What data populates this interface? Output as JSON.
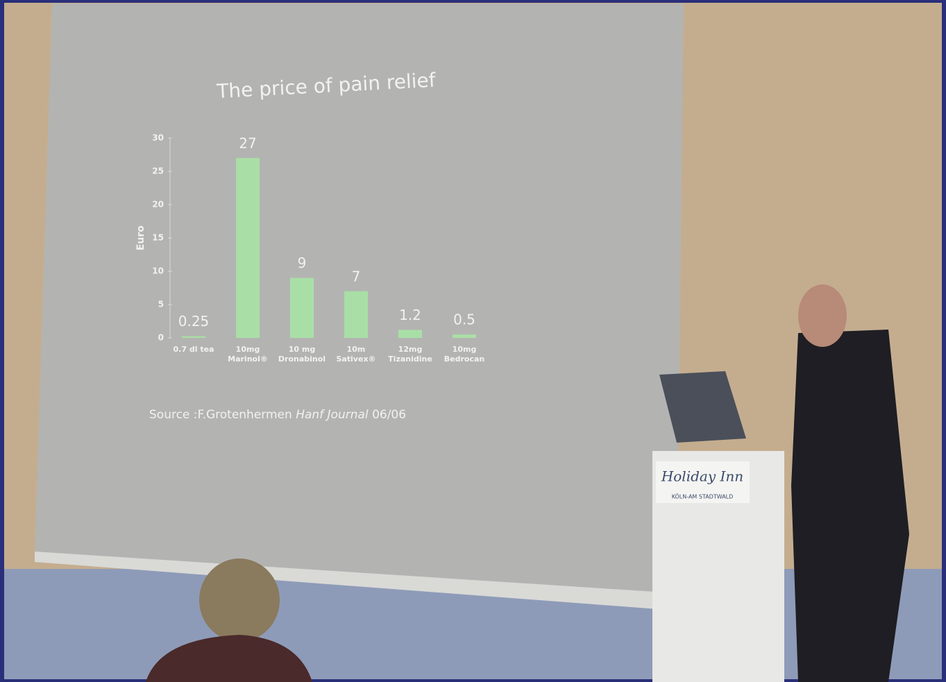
{
  "chart_data": {
    "type": "bar",
    "title": "The price of pain relief",
    "y_label": "Euro",
    "categories": [
      "0.7 dl tea",
      "10mg Marinol®",
      "10 mg Dronabinol",
      "10m Sativex®",
      "12mg Tizanidine",
      "10mg Bedrocan"
    ],
    "values": [
      0.25,
      27,
      9,
      7,
      1.2,
      0.5
    ],
    "color": "#a9dfa6",
    "ylim": [
      0,
      30
    ],
    "yticks": [
      0,
      5,
      10,
      15,
      20,
      25,
      30
    ],
    "grid": false,
    "source": {
      "prefix": "Source :F.Grotenhermen",
      "journal": "Hanf Journal",
      "date": "06/06"
    }
  },
  "podium_sign": {
    "brand": "Holiday Inn",
    "location": "KÖLN-AM STADTWALD"
  }
}
